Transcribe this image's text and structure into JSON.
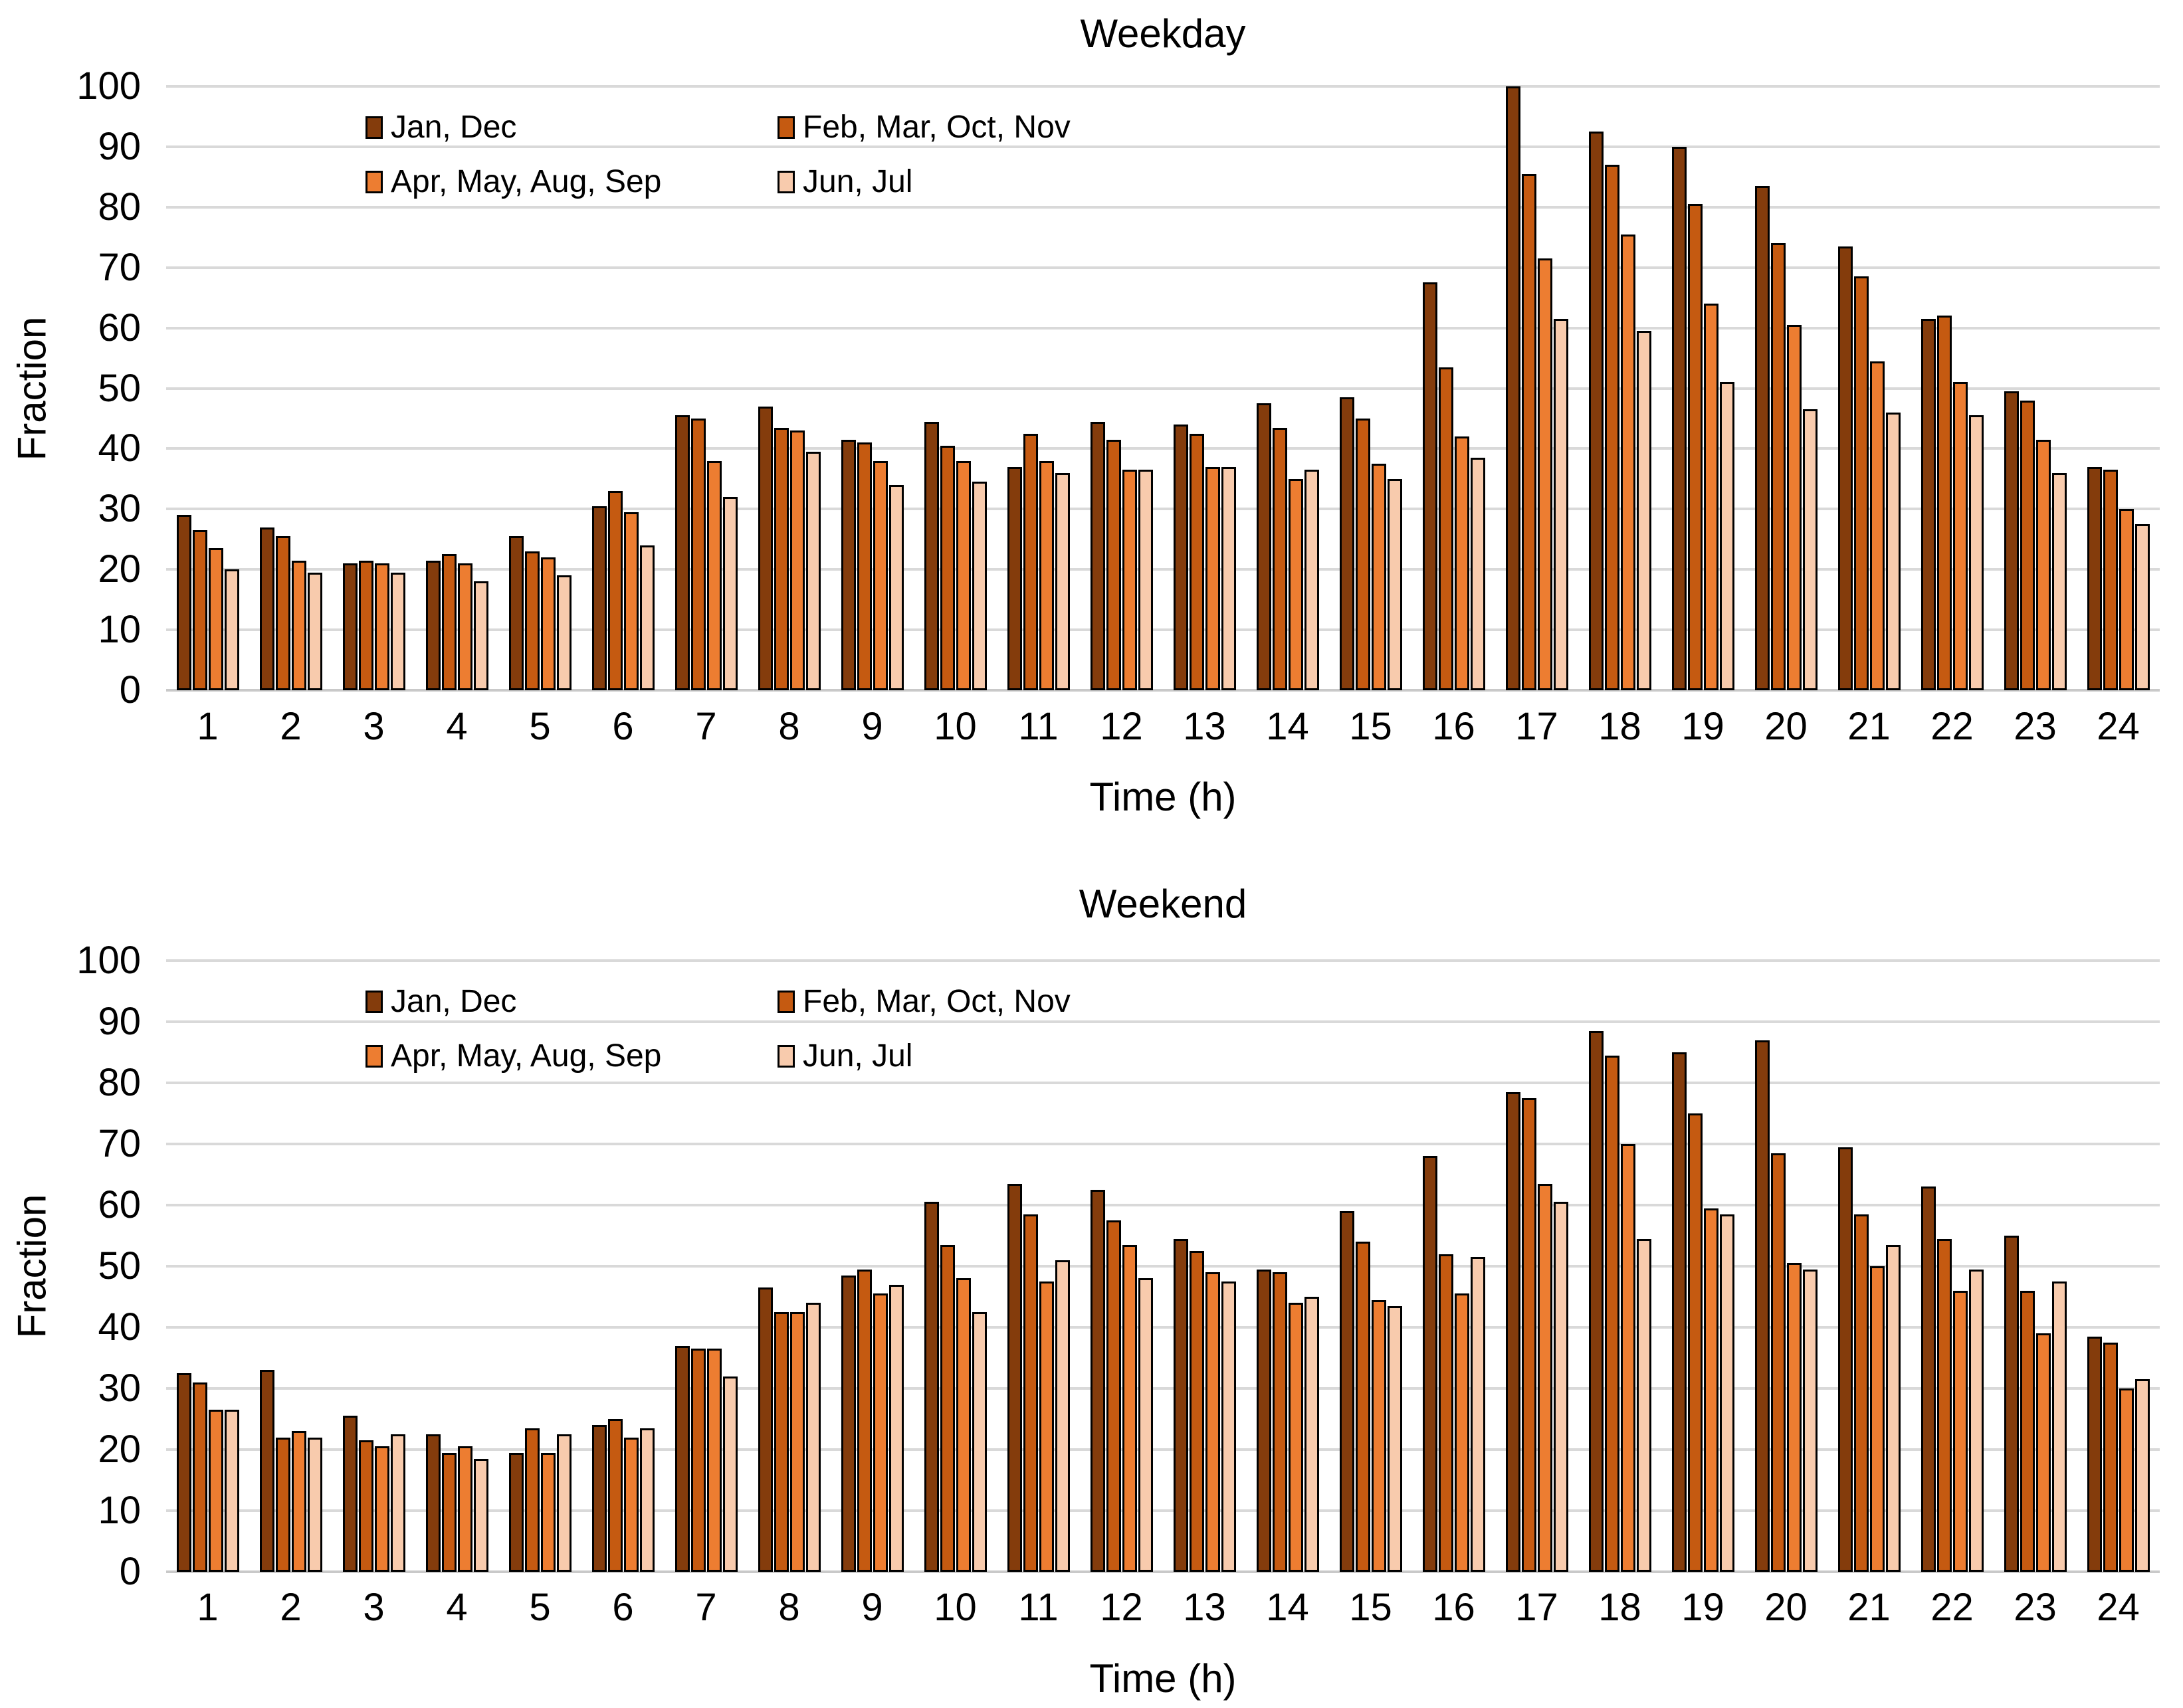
{
  "page": {
    "background": "#FFFFFF"
  },
  "palette": {
    "series1": "#843C0C",
    "series2": "#C55A11",
    "series3": "#ED7D31",
    "series4": "#F8CBAD",
    "gridline": "#D9D9D9"
  },
  "chart_data": [
    {
      "type": "bar",
      "title": "Weekday",
      "xlabel": "Time (h)",
      "ylabel": "Fraction",
      "ylim": [
        0,
        100
      ],
      "ytick_step": 10,
      "grid": true,
      "legend_position": "inside-top-left",
      "categories": [
        1,
        2,
        3,
        4,
        5,
        6,
        7,
        8,
        9,
        10,
        11,
        12,
        13,
        14,
        15,
        16,
        17,
        18,
        19,
        20,
        21,
        22,
        23,
        24
      ],
      "series": [
        {
          "name": "Jan, Dec",
          "color": "#843C0C",
          "values": [
            29,
            27,
            21,
            21.5,
            25.5,
            30.5,
            45.5,
            47,
            41.5,
            44.5,
            37,
            44.5,
            44,
            47.5,
            48.5,
            67.5,
            100,
            92.5,
            90,
            83.5,
            73.5,
            61.5,
            49.5,
            37
          ]
        },
        {
          "name": "Feb, Mar, Oct, Nov",
          "color": "#C55A11",
          "values": [
            26.5,
            25.5,
            21.5,
            22.5,
            23,
            33,
            45,
            43.5,
            41,
            40.5,
            42.5,
            41.5,
            42.5,
            43.5,
            45,
            53.5,
            85.5,
            87,
            80.5,
            74,
            68.5,
            62,
            48,
            36.5
          ]
        },
        {
          "name": "Apr, May, Aug, Sep",
          "color": "#ED7D31",
          "values": [
            23.5,
            21.5,
            21,
            21,
            22,
            29.5,
            38,
            43,
            38,
            38,
            38,
            36.5,
            37,
            35,
            37.5,
            42,
            71.5,
            75.5,
            64,
            60.5,
            54.5,
            51,
            41.5,
            30
          ]
        },
        {
          "name": "Jun, Jul",
          "color": "#F8CBAD",
          "values": [
            20,
            19.5,
            19.5,
            18,
            19,
            24,
            32,
            39.5,
            34,
            34.5,
            36,
            36.5,
            37,
            36.5,
            35,
            38.5,
            61.5,
            59.5,
            51,
            46.5,
            46,
            45.5,
            36,
            27.5
          ]
        }
      ]
    },
    {
      "type": "bar",
      "title": "Weekend",
      "xlabel": "Time (h)",
      "ylabel": "Fraction",
      "ylim": [
        0,
        100
      ],
      "ytick_step": 10,
      "grid": true,
      "legend_position": "inside-top-left",
      "categories": [
        1,
        2,
        3,
        4,
        5,
        6,
        7,
        8,
        9,
        10,
        11,
        12,
        13,
        14,
        15,
        16,
        17,
        18,
        19,
        20,
        21,
        22,
        23,
        24
      ],
      "series": [
        {
          "name": "Jan, Dec",
          "color": "#843C0C",
          "values": [
            32.5,
            33,
            25.5,
            22.5,
            19.5,
            24,
            37,
            46.5,
            48.5,
            60.5,
            63.5,
            62.5,
            54.5,
            49.5,
            59,
            68,
            78.5,
            88.5,
            85,
            87,
            69.5,
            63,
            55,
            38.5
          ]
        },
        {
          "name": "Feb, Mar, Oct, Nov",
          "color": "#C55A11",
          "values": [
            31,
            22,
            21.5,
            19.5,
            23.5,
            25,
            36.5,
            42.5,
            49.5,
            53.5,
            58.5,
            57.5,
            52.5,
            49,
            54,
            52,
            77.5,
            84.5,
            75,
            68.5,
            58.5,
            54.5,
            46,
            37.5
          ]
        },
        {
          "name": "Apr, May, Aug, Sep",
          "color": "#ED7D31",
          "values": [
            26.5,
            23,
            20.5,
            20.5,
            19.5,
            22,
            36.5,
            42.5,
            45.5,
            48,
            47.5,
            53.5,
            49,
            44,
            44.5,
            45.5,
            63.5,
            70,
            59.5,
            50.5,
            50,
            46,
            39,
            30
          ]
        },
        {
          "name": "Jun, Jul",
          "color": "#F8CBAD",
          "values": [
            26.5,
            22,
            22.5,
            18.5,
            22.5,
            23.5,
            32,
            44,
            47,
            42.5,
            51,
            48,
            47.5,
            45,
            43.5,
            51.5,
            60.5,
            54.5,
            58.5,
            49.5,
            53.5,
            49.5,
            47.5,
            31.5
          ]
        }
      ]
    }
  ]
}
